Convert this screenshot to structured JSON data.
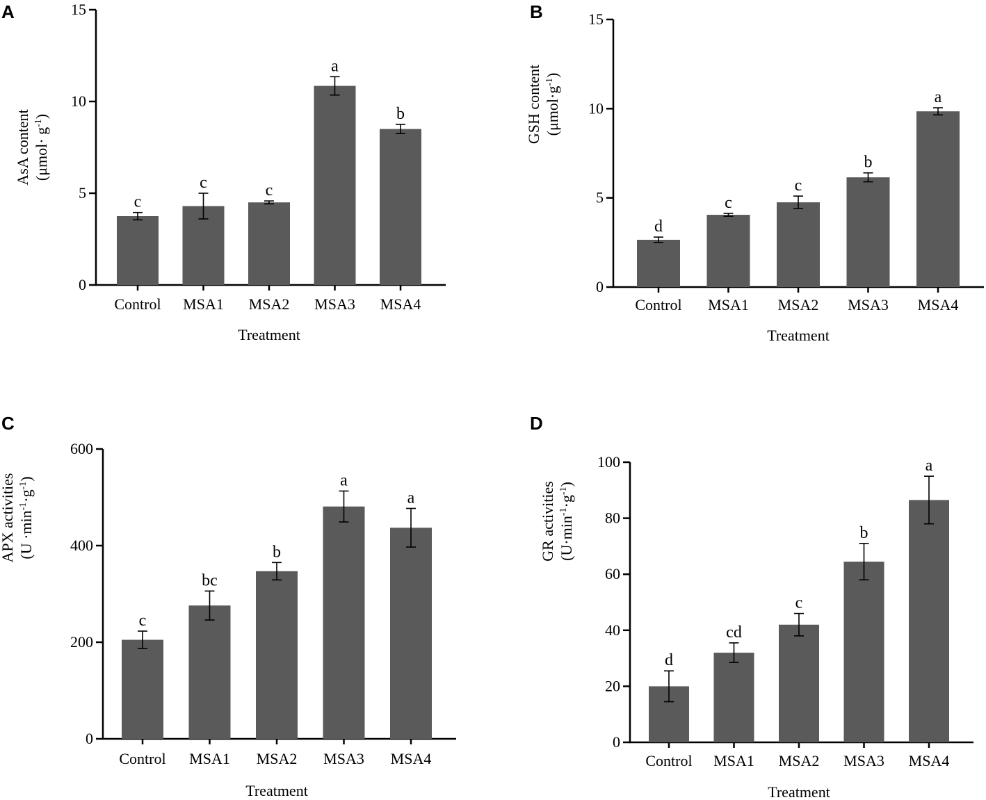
{
  "chart_data": [
    {
      "panel": "A",
      "type": "bar",
      "categories": [
        "Control",
        "MSA1",
        "MSA2",
        "MSA3",
        "MSA4"
      ],
      "values": [
        3.75,
        4.3,
        4.5,
        10.85,
        8.5
      ],
      "errors": [
        0.2,
        0.7,
        0.08,
        0.5,
        0.25
      ],
      "letters": [
        "c",
        "c",
        "c",
        "a",
        "b"
      ],
      "ylim": [
        0,
        15
      ],
      "yticks": [
        "0",
        "5",
        "10",
        "15"
      ],
      "ylabel": "AsA content",
      "yunit_base": "(μmol· g",
      "yunit_sup": "-1",
      "yunit_end": ")",
      "xlabel": "Treatment"
    },
    {
      "panel": "B",
      "type": "bar",
      "categories": [
        "Control",
        "MSA1",
        "MSA2",
        "MSA3",
        "MSA4"
      ],
      "values": [
        2.65,
        4.05,
        4.75,
        6.15,
        9.85
      ],
      "errors": [
        0.15,
        0.08,
        0.35,
        0.25,
        0.2
      ],
      "letters": [
        "d",
        "c",
        "c",
        "b",
        "a"
      ],
      "ylim": [
        0,
        15
      ],
      "yticks": [
        "0",
        "5",
        "10",
        "15"
      ],
      "ylabel": "GSH content",
      "yunit_base": "(μmol·g",
      "yunit_sup": "-1",
      "yunit_end": ")",
      "xlabel": "Treatment"
    },
    {
      "panel": "C",
      "type": "bar",
      "categories": [
        "Control",
        "MSA1",
        "MSA2",
        "MSA3",
        "MSA4"
      ],
      "values": [
        205,
        276,
        347,
        481,
        437
      ],
      "errors": [
        18,
        30,
        18,
        32,
        40
      ],
      "letters": [
        "c",
        "bc",
        "b",
        "a",
        "a"
      ],
      "ylim": [
        0,
        600
      ],
      "yticks": [
        "0",
        "200",
        "400",
        "600"
      ],
      "ylabel": "APX activities",
      "yunit_base": "(U ·min",
      "yunit_sup": "-1",
      "yunit_mid": "·g",
      "yunit_sup2": "-1",
      "yunit_end": ")",
      "xlabel": "Treatment"
    },
    {
      "panel": "D",
      "type": "bar",
      "categories": [
        "Control",
        "MSA1",
        "MSA2",
        "MSA3",
        "MSA4"
      ],
      "values": [
        20,
        32,
        42,
        64.5,
        86.5
      ],
      "errors": [
        5.5,
        3.5,
        4,
        6.5,
        8.5
      ],
      "letters": [
        "d",
        "cd",
        "c",
        "b",
        "a"
      ],
      "ylim": [
        0,
        100
      ],
      "yticks": [
        "0",
        "20",
        "40",
        "60",
        "80",
        "100"
      ],
      "ylabel": "GR activities",
      "yunit_base": "(U·min",
      "yunit_sup": "-1",
      "yunit_mid": "·g",
      "yunit_sup2": "-1",
      "yunit_end": ")",
      "xlabel": "Treatment"
    }
  ]
}
